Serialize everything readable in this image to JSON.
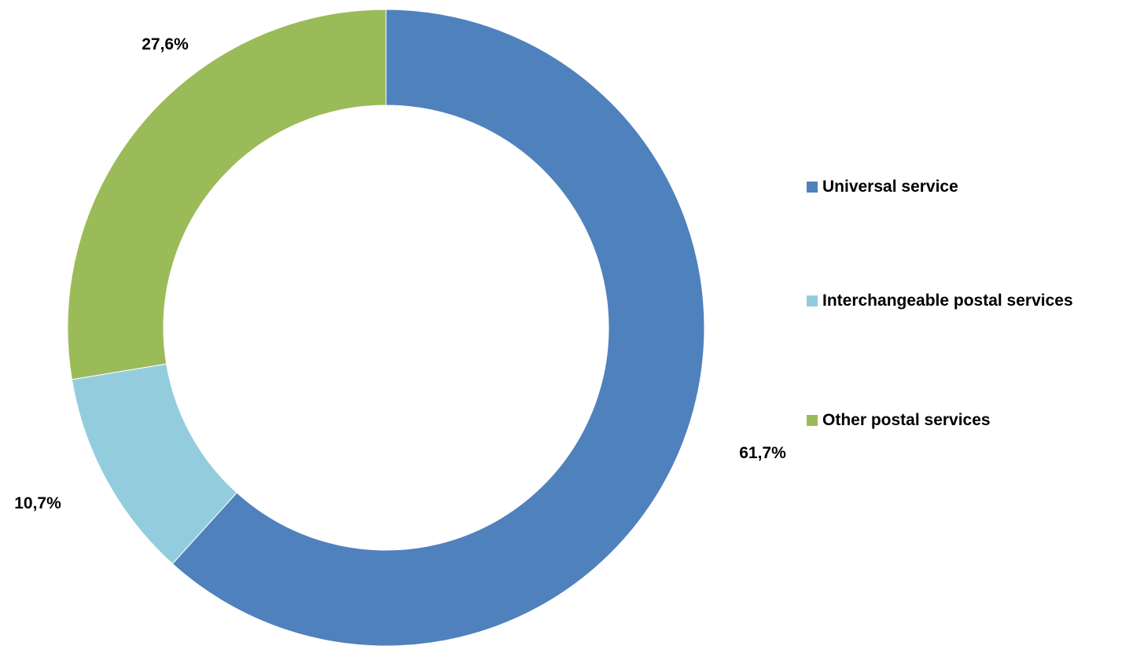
{
  "chart_data": {
    "type": "pie",
    "donut": true,
    "legend_position": "right",
    "series": [
      {
        "name": "Universal service",
        "value": 61.7,
        "label": "61,7%",
        "color": "#4F81BD"
      },
      {
        "name": "Interchangeable postal services",
        "value": 10.7,
        "label": "10,7%",
        "color": "#93CDDD"
      },
      {
        "name": "Other postal services",
        "value": 27.6,
        "label": "27,6%",
        "color": "#9BBB59"
      }
    ]
  }
}
